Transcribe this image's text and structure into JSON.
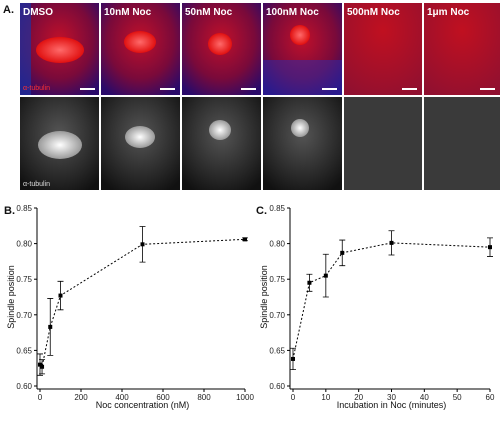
{
  "panel_a": {
    "label": "A.",
    "columns": [
      "DMSO",
      "10nM Noc",
      "50nM Noc",
      "100nM Noc",
      "500nM Noc",
      "1μm Noc"
    ],
    "row_labels": [
      "α-tubulin",
      "α-tubulin"
    ]
  },
  "chart_data": [
    {
      "type": "line",
      "panel_label": "B.",
      "x_label": "Noc concentration (nM)",
      "y_label": "Spindle position",
      "x": [
        0,
        10,
        50,
        100,
        500,
        1000
      ],
      "values": [
        0.63,
        0.627,
        0.683,
        0.727,
        0.799,
        0.806
      ],
      "errors": [
        0.015,
        0.01,
        0.04,
        0.02,
        0.025,
        0.002
      ],
      "color": "#000000",
      "xlim": [
        0,
        1000
      ],
      "xticks": [
        0,
        200,
        400,
        600,
        800,
        1000
      ],
      "ylim": [
        0.6,
        0.85
      ],
      "yticks": [
        {
          "value": 0.6,
          "label": "0.60"
        },
        0.65,
        {
          "value": 0.7,
          "label": "0.70"
        },
        0.75,
        {
          "value": 0.8,
          "label": "0.80"
        },
        0.85
      ]
    },
    {
      "type": "line",
      "panel_label": "C.",
      "x_label": "Incubation in Noc (minutes)",
      "y_label": "Spindle position",
      "x": [
        0,
        5,
        10,
        15,
        30,
        60
      ],
      "values": [
        0.638,
        0.745,
        0.755,
        0.787,
        0.801,
        0.795
      ],
      "errors": [
        0.015,
        0.012,
        0.03,
        0.018,
        0.017,
        0.013
      ],
      "color": "#000000",
      "xlim": [
        0,
        60
      ],
      "xticks": [
        0,
        10,
        20,
        30,
        40,
        50,
        60
      ],
      "ylim": [
        0.6,
        0.85
      ],
      "yticks": [
        {
          "value": 0.6,
          "label": "0.60"
        },
        0.65,
        {
          "value": 0.7,
          "label": "0.70"
        },
        0.75,
        {
          "value": 0.8,
          "label": "0.80"
        },
        0.85
      ]
    }
  ]
}
